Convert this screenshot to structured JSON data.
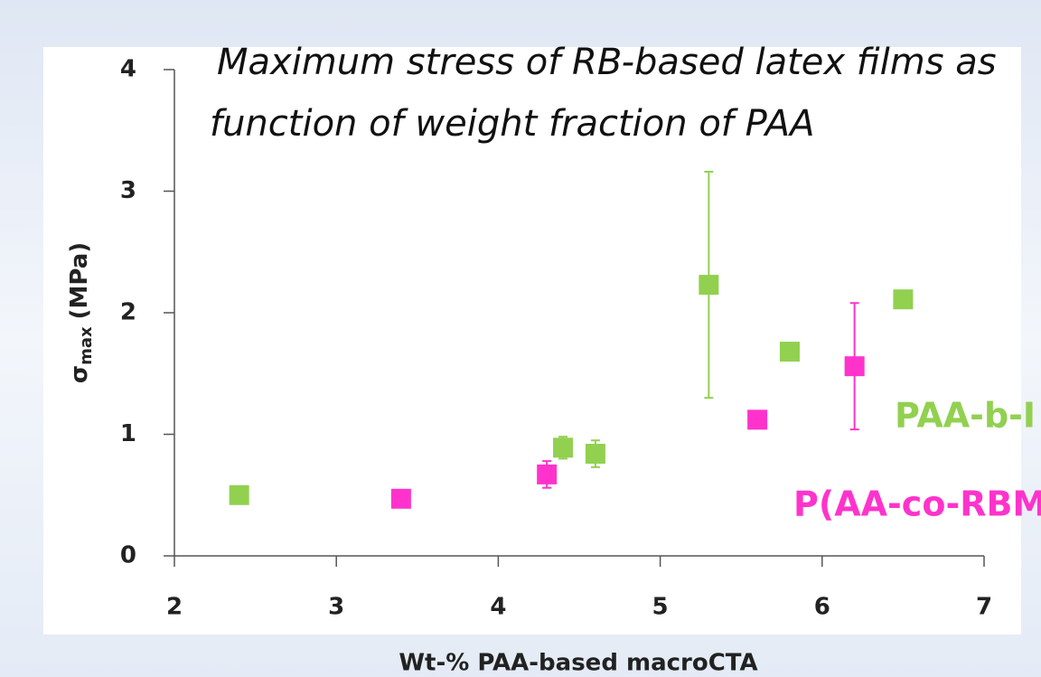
{
  "chart_data": {
    "type": "scatter",
    "title": [
      "Maximum stress of RB-based latex films as",
      "function of weight fraction of PAA"
    ],
    "x_label": "Wt-% PAA-based macroCTA",
    "y_label": {
      "symbol": "σ",
      "subscript": "max",
      "unit": "(MPa)"
    },
    "xlim": [
      2,
      7
    ],
    "xticks": [
      2,
      3,
      4,
      5,
      6,
      7
    ],
    "ylim": [
      0,
      4
    ],
    "yticks": [
      0,
      1,
      2,
      3,
      4
    ],
    "grid": false,
    "series": [
      {
        "name": "PAA-b-I",
        "color": "#92d050",
        "x": [
          2.4,
          4.4,
          4.6,
          5.3,
          5.8,
          6.5
        ],
        "y": [
          0.5,
          0.89,
          0.84,
          2.23,
          1.68,
          2.11
        ],
        "error": [
          null,
          0.09,
          0.11,
          0.93,
          null,
          null
        ]
      },
      {
        "name": "P(AA-co-RBM",
        "color": "#ff33cc",
        "x": [
          3.4,
          4.3,
          5.6,
          6.2
        ],
        "y": [
          0.47,
          0.67,
          1.12,
          1.56
        ],
        "error": [
          null,
          0.11,
          null,
          0.52
        ]
      }
    ]
  }
}
